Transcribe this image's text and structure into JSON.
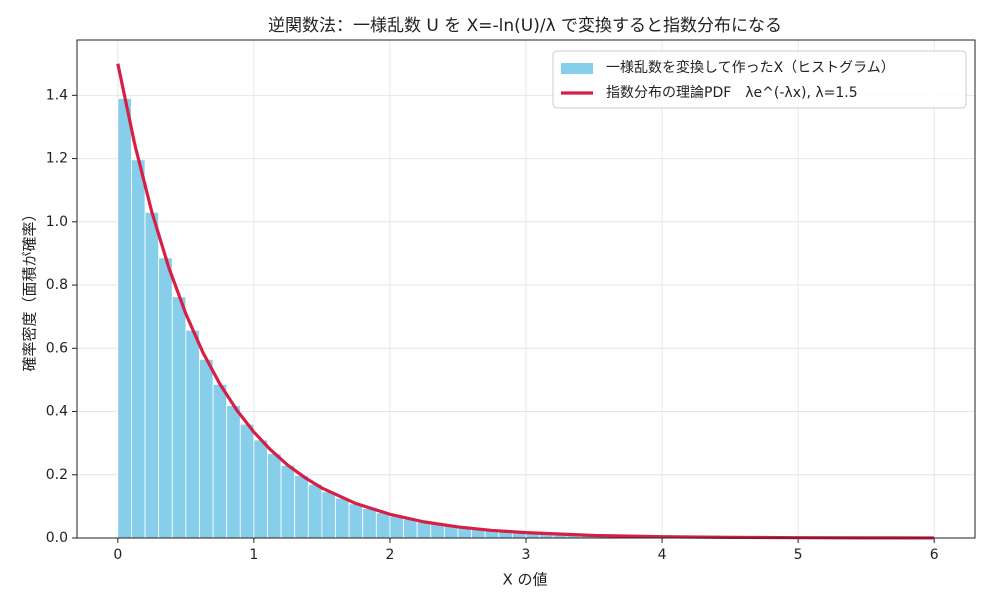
{
  "chart_data": {
    "type": "histogram",
    "title": "逆関数法：一様乱数 U を X=-ln(U)/λ で変換すると指数分布になる",
    "x_label": "X の値",
    "y_label": "確率密度（面積が確率）",
    "xlim": [
      -0.3,
      6.3
    ],
    "ylim": [
      0,
      1.575
    ],
    "xticks": [
      0,
      1,
      2,
      3,
      4,
      5,
      6
    ],
    "yticks": [
      {
        "value": 0,
        "label": "0.0"
      },
      0.2,
      0.4,
      0.6,
      0.8,
      {
        "value": 1,
        "label": "1.0"
      },
      1.2,
      1.4
    ],
    "grid": true,
    "legend": "upper right",
    "series": [
      {
        "name": "一様乱数を変換して作ったX（ヒストグラム）",
        "type": "histogram",
        "color": "#87ceeb",
        "bins": [
          0,
          0.1,
          0.2,
          0.3,
          0.4,
          0.5,
          0.6,
          0.7,
          0.8,
          0.9,
          1,
          1.1,
          1.2,
          1.3,
          1.4,
          1.5,
          1.6,
          1.7,
          1.8,
          1.9,
          2,
          2.1,
          2.2,
          2.3,
          2.4,
          2.5,
          2.6,
          2.7,
          2.8,
          2.9,
          3,
          3.1,
          3.2,
          3.3,
          3.4,
          3.5,
          3.6,
          3.7,
          3.8,
          3.9,
          4,
          4.1,
          4.2,
          4.3,
          4.4,
          4.5,
          4.6,
          4.7,
          4.8,
          4.9,
          5
        ],
        "values": [
          1.39,
          1.196,
          1.03,
          0.886,
          0.763,
          0.657,
          0.565,
          0.486,
          0.419,
          0.36,
          0.31,
          0.267,
          0.23,
          0.198,
          0.17,
          0.146,
          0.126,
          0.108,
          0.093,
          0.08,
          0.069,
          0.06,
          0.051,
          0.044,
          0.038,
          0.033,
          0.028,
          0.024,
          0.021,
          0.018,
          0.015,
          0.013,
          0.011,
          0.01,
          0.008,
          0.007,
          0.006,
          0.005,
          0.0045,
          0.004,
          0.003,
          0.003,
          0.002,
          0.002,
          0.002,
          0.001,
          0.001,
          0.001,
          0.001,
          0.001
        ]
      },
      {
        "name": "指数分布の理論PDF　λe^(-λx), λ=1.5",
        "type": "line",
        "color": "#d61f45",
        "x": [
          0,
          0.125,
          0.25,
          0.375,
          0.5,
          0.625,
          0.75,
          0.875,
          1,
          1.125,
          1.25,
          1.375,
          1.5,
          1.75,
          2,
          2.25,
          2.5,
          2.75,
          3,
          3.5,
          4,
          4.5,
          5,
          5.5,
          6
        ],
        "values": [
          1.5,
          1.244,
          1.031,
          0.855,
          0.709,
          0.587,
          0.487,
          0.404,
          0.335,
          0.278,
          0.23,
          0.191,
          0.158,
          0.109,
          0.075,
          0.051,
          0.035,
          0.024,
          0.017,
          0.008,
          0.004,
          0.002,
          0.001,
          0.0004,
          0.0002
        ]
      }
    ]
  }
}
